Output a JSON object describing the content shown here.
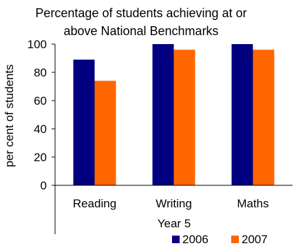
{
  "chart_data": {
    "type": "bar",
    "title": "Percentage of students achieving at or above National Benchmarks",
    "title_lines": [
      "Percentage of students achieving at or",
      "above National Benchmarks"
    ],
    "ylabel": "per cent of students",
    "xlabel": "Year 5",
    "ylim": [
      0,
      100
    ],
    "yticks": [
      0,
      20,
      40,
      60,
      80,
      100
    ],
    "categories": [
      "Reading",
      "Writing",
      "Maths"
    ],
    "series": [
      {
        "name": "2006",
        "color": "#000080",
        "values": [
          89,
          100,
          100
        ]
      },
      {
        "name": "2007",
        "color": "#FF6600",
        "values": [
          74,
          96,
          96
        ]
      }
    ],
    "grid": false,
    "legend": "bottom-right"
  }
}
